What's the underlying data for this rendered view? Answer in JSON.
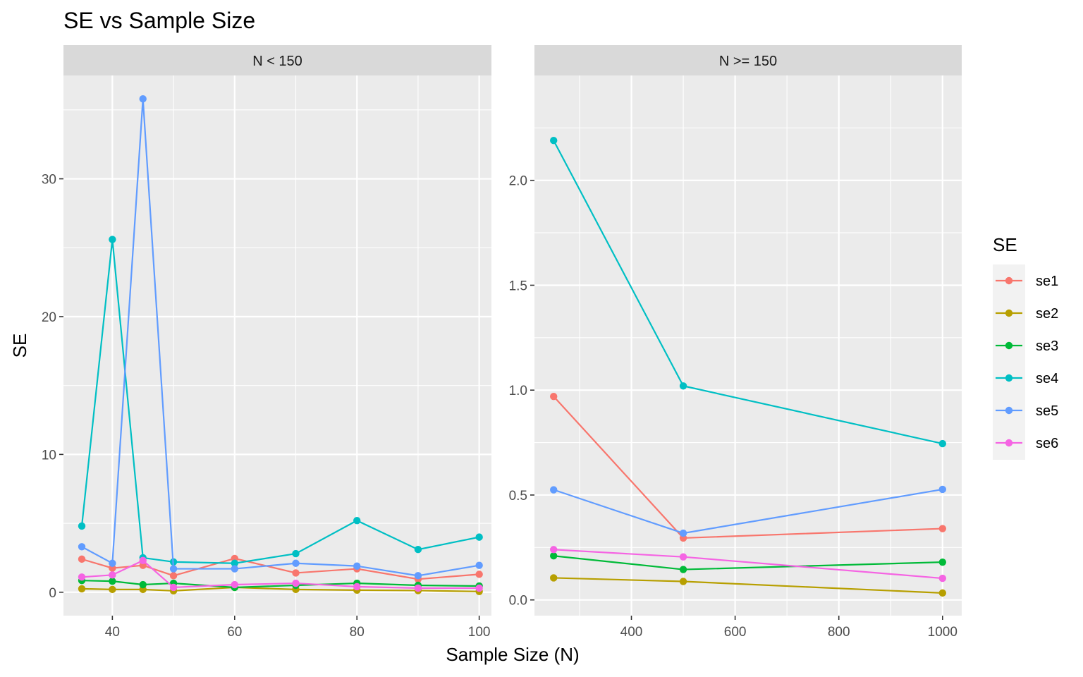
{
  "chart_data": {
    "type": "line",
    "title": "SE vs Sample Size",
    "xlabel": "Sample Size (N)",
    "ylabel": "SE",
    "grid": true,
    "legend": {
      "title": "SE",
      "placement": "right",
      "items": [
        {
          "name": "se1",
          "color": "#F8766D"
        },
        {
          "name": "se2",
          "color": "#B79F00"
        },
        {
          "name": "se3",
          "color": "#00BA38"
        },
        {
          "name": "se4",
          "color": "#00BFC4"
        },
        {
          "name": "se5",
          "color": "#619CFF"
        },
        {
          "name": "se6",
          "color": "#F564E3"
        }
      ]
    },
    "panels": [
      {
        "label": "N < 150",
        "xlim": [
          32,
          102
        ],
        "ylim": [
          -1.7,
          37.5
        ],
        "xticks": [
          40,
          60,
          80,
          100
        ],
        "xminor": [
          50,
          70,
          90
        ],
        "yticks": [
          0,
          10,
          20,
          30
        ],
        "ytick_labels": [
          "0",
          "10",
          "20",
          "30"
        ],
        "yminor": [
          5,
          15,
          25,
          35
        ],
        "series": [
          {
            "name": "se1",
            "color": "#F8766D",
            "x": [
              35,
              40,
              45,
              50,
              60,
              70,
              80,
              90,
              100
            ],
            "y": [
              2.4,
              1.75,
              1.95,
              1.2,
              2.45,
              1.4,
              1.7,
              0.95,
              1.3
            ]
          },
          {
            "name": "se2",
            "color": "#B79F00",
            "x": [
              35,
              40,
              45,
              50,
              60,
              70,
              80,
              90,
              100
            ],
            "y": [
              0.25,
              0.2,
              0.2,
              0.1,
              0.35,
              0.2,
              0.15,
              0.12,
              0.05
            ]
          },
          {
            "name": "se3",
            "color": "#00BA38",
            "x": [
              35,
              40,
              45,
              50,
              60,
              70,
              80,
              90,
              100
            ],
            "y": [
              0.85,
              0.8,
              0.55,
              0.65,
              0.35,
              0.5,
              0.65,
              0.5,
              0.45
            ]
          },
          {
            "name": "se4",
            "color": "#00BFC4",
            "x": [
              35,
              40,
              45,
              50,
              60,
              70,
              80,
              90,
              100
            ],
            "y": [
              4.8,
              25.6,
              2.5,
              2.2,
              2.1,
              2.8,
              5.2,
              3.1,
              4.0
            ]
          },
          {
            "name": "se5",
            "color": "#619CFF",
            "x": [
              35,
              40,
              45,
              50,
              60,
              70,
              80,
              90,
              100
            ],
            "y": [
              3.3,
              2.1,
              35.8,
              1.7,
              1.7,
              2.1,
              1.9,
              1.2,
              1.95
            ]
          },
          {
            "name": "se6",
            "color": "#F564E3",
            "x": [
              35,
              40,
              45,
              50,
              60,
              70,
              80,
              90,
              100
            ],
            "y": [
              1.1,
              1.25,
              2.3,
              0.35,
              0.55,
              0.65,
              0.4,
              0.3,
              0.3
            ]
          }
        ]
      },
      {
        "label": "N >= 150",
        "xlim": [
          213,
          1037
        ],
        "ylim": [
          -0.075,
          2.5
        ],
        "xticks": [
          400,
          600,
          800,
          1000
        ],
        "xminor": [
          300,
          500,
          700,
          900
        ],
        "yticks": [
          0,
          0.5,
          1.0,
          1.5,
          2.0
        ],
        "ytick_labels": [
          "0.0",
          "0.5",
          "1.0",
          "1.5",
          "2.0"
        ],
        "yminor": [
          0.25,
          0.75,
          1.25,
          1.75,
          2.25
        ],
        "series": [
          {
            "name": "se1",
            "color": "#F8766D",
            "x": [
              250,
              500,
              1000
            ],
            "y": [
              0.97,
              0.295,
              0.34
            ]
          },
          {
            "name": "se2",
            "color": "#B79F00",
            "x": [
              250,
              500,
              1000
            ],
            "y": [
              0.105,
              0.088,
              0.033
            ]
          },
          {
            "name": "se3",
            "color": "#00BA38",
            "x": [
              250,
              500,
              1000
            ],
            "y": [
              0.21,
              0.145,
              0.18
            ]
          },
          {
            "name": "se4",
            "color": "#00BFC4",
            "x": [
              250,
              500,
              1000
            ],
            "y": [
              2.19,
              1.02,
              0.745
            ]
          },
          {
            "name": "se5",
            "color": "#619CFF",
            "x": [
              250,
              500,
              1000
            ],
            "y": [
              0.525,
              0.318,
              0.527
            ]
          },
          {
            "name": "se6",
            "color": "#F564E3",
            "x": [
              250,
              500,
              1000
            ],
            "y": [
              0.24,
              0.205,
              0.103
            ]
          }
        ]
      }
    ]
  }
}
